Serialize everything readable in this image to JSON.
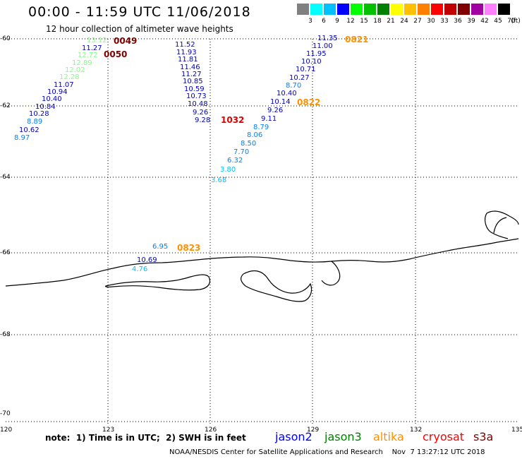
{
  "title": "00:00 - 11:59 UTC 11/06/2018",
  "subtitle": "12 hour collection of altimeter wave heights",
  "scale": {
    "colors": [
      "#808080",
      "#00ffff",
      "#00c0ff",
      "#0000ff",
      "#00ff00",
      "#00c000",
      "#008000",
      "#ffff00",
      "#ffc000",
      "#ff8000",
      "#ff0000",
      "#c00000",
      "#800000",
      "#a000a0",
      "#ff80ff",
      "#000000"
    ],
    "labels": [
      "3",
      "6",
      "9",
      "12",
      "15",
      "18",
      "21",
      "24",
      "27",
      "30",
      "33",
      "36",
      "39",
      "42",
      "45",
      "70"
    ],
    "unit": "(ft)"
  },
  "axes": {
    "lat_labels": [
      "-60",
      "-62",
      "-64",
      "-66",
      "-68",
      "-70"
    ],
    "lon_labels": [
      "120",
      "123",
      "126",
      "129",
      "132",
      "135"
    ]
  },
  "wave_heights": [
    {
      "text": "13.12",
      "color": "#80ff80"
    },
    {
      "text": "11.27",
      "color": "#0000c0"
    },
    {
      "text": "12.72",
      "color": "#80ff80"
    },
    {
      "text": "12.89",
      "color": "#80ff80"
    },
    {
      "text": "12.02",
      "color": "#80ff80"
    },
    {
      "text": "12.28",
      "color": "#80ff80"
    },
    {
      "text": "11.07",
      "color": "#0000c0"
    },
    {
      "text": "10.94",
      "color": "#0000c0"
    },
    {
      "text": "10.40",
      "color": "#0000c0"
    },
    {
      "text": "10.84",
      "color": "#0000c0"
    },
    {
      "text": "10.28",
      "color": "#0000c0"
    },
    {
      "text": "8.89",
      "color": "#0080ff"
    },
    {
      "text": "10.62",
      "color": "#0000c0"
    },
    {
      "text": "8.97",
      "color": "#0080ff"
    },
    {
      "text": "11.52",
      "color": "#0000c0"
    },
    {
      "text": "11.93",
      "color": "#0000c0"
    },
    {
      "text": "11.81",
      "color": "#0000c0"
    },
    {
      "text": "11.46",
      "color": "#0000c0"
    },
    {
      "text": "11.27",
      "color": "#0000c0"
    },
    {
      "text": "10.85",
      "color": "#0000c0"
    },
    {
      "text": "10.59",
      "color": "#0000c0"
    },
    {
      "text": "10.73",
      "color": "#0000c0"
    },
    {
      "text": "10.48",
      "color": "#0000c0"
    },
    {
      "text": "9.26",
      "color": "#0000c0"
    },
    {
      "text": "9.28",
      "color": "#0000c0"
    },
    {
      "text": "11.35",
      "color": "#0000c0"
    },
    {
      "text": "11.00",
      "color": "#0000c0"
    },
    {
      "text": "11.95",
      "color": "#0000c0"
    },
    {
      "text": "10.10",
      "color": "#0000c0"
    },
    {
      "text": "10.71",
      "color": "#0000c0"
    },
    {
      "text": "10.27",
      "color": "#0000c0"
    },
    {
      "text": "8.70",
      "color": "#0080ff"
    },
    {
      "text": "10.40",
      "color": "#0000c0"
    },
    {
      "text": "10.14",
      "color": "#0000c0"
    },
    {
      "text": "9.26",
      "color": "#0000c0"
    },
    {
      "text": "9.11",
      "color": "#0000c0"
    },
    {
      "text": "8.79",
      "color": "#0080ff"
    },
    {
      "text": "8.06",
      "color": "#0080ff"
    },
    {
      "text": "8.50",
      "color": "#0080ff"
    },
    {
      "text": "7.70",
      "color": "#0080ff"
    },
    {
      "text": "6.32",
      "color": "#0080ff"
    },
    {
      "text": "3.80",
      "color": "#00c0ff"
    },
    {
      "text": "3.68",
      "color": "#00c0ff"
    },
    {
      "text": "6.95",
      "color": "#0080ff"
    },
    {
      "text": "10.69",
      "color": "#0000c0"
    },
    {
      "text": "4.76",
      "color": "#00c0ff"
    }
  ],
  "times": [
    {
      "text": "0049",
      "color": "#800000"
    },
    {
      "text": "0050",
      "color": "#800000"
    },
    {
      "text": "1032",
      "color": "#e00000"
    },
    {
      "text": "0821",
      "color": "#ff9000"
    },
    {
      "text": "0822",
      "color": "#ff9000"
    },
    {
      "text": "0823",
      "color": "#ff9000"
    }
  ],
  "note": "note:  1) Time is in UTC;  2) SWH is in feet",
  "satellites": [
    {
      "name": "jason2",
      "color": "#0000ff"
    },
    {
      "name": "jason3",
      "color": "#008000"
    },
    {
      "name": "altika",
      "color": "#ff9000"
    },
    {
      "name": "cryosat",
      "color": "#ff0000"
    },
    {
      "name": "s3a",
      "color": "#800000"
    }
  ],
  "credit": "NOAA/NESDIS Center for Satellite Applications and Research    Nov  7 13:27:12 UTC 2018"
}
